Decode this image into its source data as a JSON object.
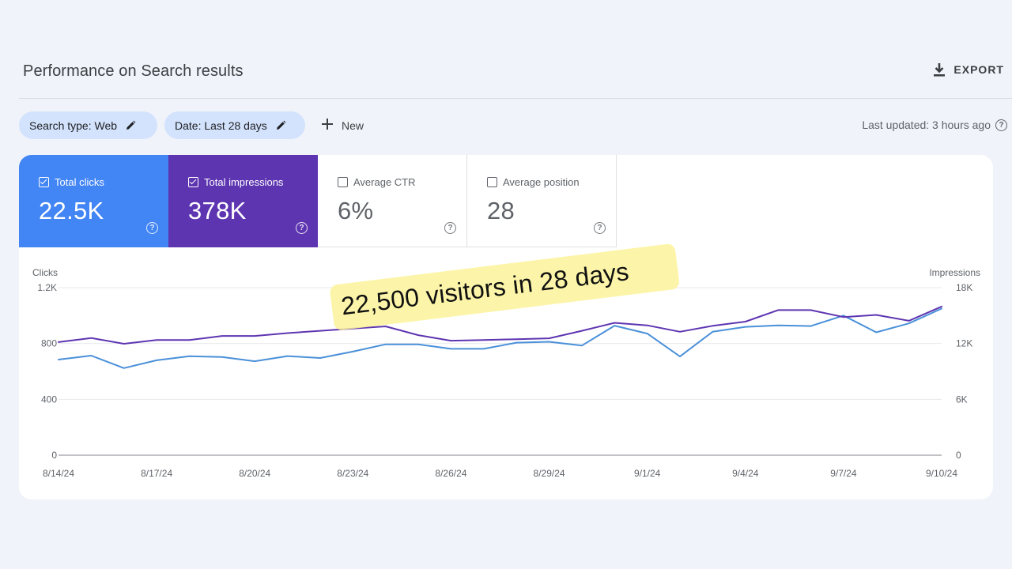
{
  "header": {
    "title": "Performance on Search results",
    "export_label": "EXPORT"
  },
  "filters": {
    "search_type": "Search type: Web",
    "date": "Date: Last 28 days",
    "new_label": "New",
    "last_updated": "Last updated: 3 hours ago"
  },
  "metrics": [
    {
      "label": "Total clicks",
      "value": "22.5K",
      "checked": true,
      "color": "#4285f4"
    },
    {
      "label": "Total impressions",
      "value": "378K",
      "checked": true,
      "color": "#5e35b1"
    },
    {
      "label": "Average CTR",
      "value": "6%",
      "checked": false,
      "color": "#ffffff"
    },
    {
      "label": "Average position",
      "value": "28",
      "checked": false,
      "color": "#ffffff"
    }
  ],
  "annotation": "22,500 visitors in 28 days",
  "chart_data": {
    "type": "line",
    "left_axis_label": "Clicks",
    "right_axis_label": "Impressions",
    "left_ticks": [
      "0",
      "400",
      "800",
      "1.2K"
    ],
    "right_ticks": [
      "0",
      "6K",
      "12K",
      "18K"
    ],
    "ylim_left": [
      0,
      1200
    ],
    "ylim_right": [
      0,
      18000
    ],
    "x_tick_labels": [
      "8/14/24",
      "8/17/24",
      "8/20/24",
      "8/23/24",
      "8/26/24",
      "8/29/24",
      "9/1/24",
      "9/4/24",
      "9/7/24",
      "9/10/24"
    ],
    "dates": [
      "8/14/24",
      "8/15/24",
      "8/16/24",
      "8/17/24",
      "8/18/24",
      "8/19/24",
      "8/20/24",
      "8/21/24",
      "8/22/24",
      "8/23/24",
      "8/24/24",
      "8/25/24",
      "8/26/24",
      "8/27/24",
      "8/28/24",
      "8/29/24",
      "8/30/24",
      "8/31/24",
      "9/1/24",
      "9/2/24",
      "9/3/24",
      "9/4/24",
      "9/5/24",
      "9/6/24",
      "9/7/24",
      "9/8/24",
      "9/9/24",
      "9/10/24"
    ],
    "series": [
      {
        "name": "Clicks",
        "axis": "left",
        "color": "#4a90d9",
        "values": [
          685,
          713,
          624,
          680,
          709,
          703,
          673,
          710,
          696,
          742,
          794,
          794,
          762,
          762,
          806,
          812,
          785,
          928,
          871,
          707,
          884,
          919,
          930,
          925,
          1000,
          880,
          944,
          1050
        ]
      },
      {
        "name": "Impressions",
        "axis": "right",
        "color": "#5e35b1",
        "values": [
          12150,
          12590,
          11970,
          12370,
          12370,
          12810,
          12810,
          13120,
          13360,
          13600,
          13840,
          12900,
          12300,
          12370,
          12460,
          12560,
          13360,
          14220,
          13950,
          13260,
          13900,
          14350,
          15590,
          15590,
          14840,
          15070,
          14440,
          15970
        ]
      }
    ]
  }
}
